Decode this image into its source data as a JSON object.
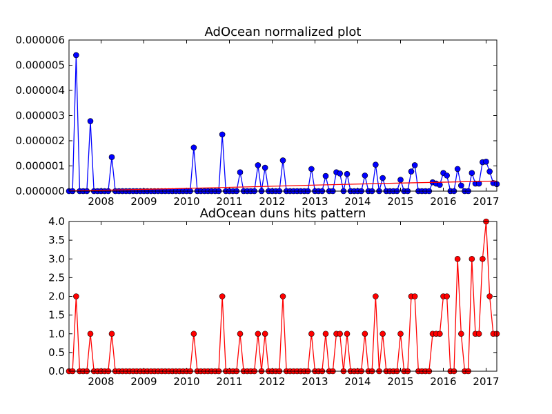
{
  "chart_data": [
    {
      "type": "line",
      "title": "AdOcean normalized plot",
      "x": [
        2007.25,
        2007.333,
        2007.417,
        2007.5,
        2007.583,
        2007.667,
        2007.75,
        2007.833,
        2007.917,
        2008.0,
        2008.083,
        2008.167,
        2008.25,
        2008.333,
        2008.417,
        2008.5,
        2008.583,
        2008.667,
        2008.75,
        2008.833,
        2008.917,
        2009.0,
        2009.083,
        2009.167,
        2009.25,
        2009.333,
        2009.417,
        2009.5,
        2009.583,
        2009.667,
        2009.75,
        2009.833,
        2009.917,
        2010.0,
        2010.083,
        2010.167,
        2010.25,
        2010.333,
        2010.417,
        2010.5,
        2010.583,
        2010.667,
        2010.75,
        2010.833,
        2010.917,
        2011.0,
        2011.083,
        2011.167,
        2011.25,
        2011.333,
        2011.417,
        2011.5,
        2011.583,
        2011.667,
        2011.75,
        2011.833,
        2011.917,
        2012.0,
        2012.083,
        2012.167,
        2012.25,
        2012.333,
        2012.417,
        2012.5,
        2012.583,
        2012.667,
        2012.75,
        2012.833,
        2012.917,
        2013.0,
        2013.083,
        2013.167,
        2013.25,
        2013.333,
        2013.417,
        2013.5,
        2013.583,
        2013.667,
        2013.75,
        2013.833,
        2013.917,
        2014.0,
        2014.083,
        2014.167,
        2014.25,
        2014.333,
        2014.417,
        2014.5,
        2014.583,
        2014.667,
        2014.75,
        2014.833,
        2014.917,
        2015.0,
        2015.083,
        2015.167,
        2015.25,
        2015.333,
        2015.417,
        2015.5,
        2015.583,
        2015.667,
        2015.75,
        2015.833,
        2015.917,
        2016.0,
        2016.083,
        2016.167,
        2016.25,
        2016.333,
        2016.417,
        2016.5,
        2016.583,
        2016.667,
        2016.75,
        2016.833,
        2016.917,
        2017.0,
        2017.083,
        2017.167,
        2017.25
      ],
      "series": [
        {
          "color": "#0000ff",
          "markers": true,
          "values": [
            0,
            0,
            5.4e-06,
            0,
            0,
            0,
            2.78e-06,
            0,
            0,
            0,
            0,
            0,
            1.35e-06,
            0,
            0,
            0,
            0,
            0,
            0,
            0,
            0,
            0,
            0,
            0,
            0,
            0,
            0,
            0,
            0,
            0,
            0,
            0,
            0,
            0,
            0,
            1.73e-06,
            0,
            0,
            0,
            0,
            0,
            0,
            0,
            2.25e-06,
            0,
            0,
            0,
            0,
            7.5e-07,
            0,
            0,
            0,
            0,
            1.03e-06,
            0,
            9.3e-07,
            0,
            0,
            0,
            0,
            1.22e-06,
            0,
            0,
            0,
            0,
            0,
            0,
            0,
            8.8e-07,
            0,
            0,
            0,
            6e-07,
            0,
            0,
            7.5e-07,
            7e-07,
            0,
            6.8e-07,
            0,
            0,
            0,
            0,
            6.2e-07,
            0,
            0,
            1.05e-06,
            0,
            5.2e-07,
            0,
            0,
            0,
            0,
            4.5e-07,
            0,
            0,
            7.8e-07,
            1.03e-06,
            0,
            0,
            0,
            0,
            3.5e-07,
            3e-07,
            2.5e-07,
            7.2e-07,
            6.2e-07,
            0,
            0,
            8.8e-07,
            2.2e-07,
            0,
            0,
            7.2e-07,
            3e-07,
            3e-07,
            1.15e-06,
            1.17e-06,
            7.8e-07,
            3.2e-07,
            2.8e-07
          ]
        },
        {
          "color": "#ff0000",
          "markers": false,
          "x": [
            2007.25,
            2009,
            2011,
            2013,
            2015,
            2017.25
          ],
          "values": [
            1e-08,
            7e-08,
            1.5e-07,
            2.4e-07,
            3.2e-07,
            4e-07
          ]
        }
      ],
      "xlim": [
        2007.25,
        2017.25
      ],
      "xticks": [
        2008,
        2009,
        2010,
        2011,
        2012,
        2013,
        2014,
        2015,
        2016,
        2017
      ],
      "ylim": [
        0,
        6e-06
      ],
      "yticks": [
        {
          "value": 0,
          "label": "0.000000"
        },
        {
          "value": 1e-06,
          "label": "0.000001"
        },
        {
          "value": 2e-06,
          "label": "0.000002"
        },
        {
          "value": 3e-06,
          "label": "0.000003"
        },
        {
          "value": 4e-06,
          "label": "0.000004"
        },
        {
          "value": 5e-06,
          "label": "0.000005"
        },
        {
          "value": 6e-06,
          "label": "0.000006"
        }
      ]
    },
    {
      "type": "line",
      "title": "AdOcean duns hits pattern",
      "x": [
        2007.25,
        2007.333,
        2007.417,
        2007.5,
        2007.583,
        2007.667,
        2007.75,
        2007.833,
        2007.917,
        2008.0,
        2008.083,
        2008.167,
        2008.25,
        2008.333,
        2008.417,
        2008.5,
        2008.583,
        2008.667,
        2008.75,
        2008.833,
        2008.917,
        2009.0,
        2009.083,
        2009.167,
        2009.25,
        2009.333,
        2009.417,
        2009.5,
        2009.583,
        2009.667,
        2009.75,
        2009.833,
        2009.917,
        2010.0,
        2010.083,
        2010.167,
        2010.25,
        2010.333,
        2010.417,
        2010.5,
        2010.583,
        2010.667,
        2010.75,
        2010.833,
        2010.917,
        2011.0,
        2011.083,
        2011.167,
        2011.25,
        2011.333,
        2011.417,
        2011.5,
        2011.583,
        2011.667,
        2011.75,
        2011.833,
        2011.917,
        2012.0,
        2012.083,
        2012.167,
        2012.25,
        2012.333,
        2012.417,
        2012.5,
        2012.583,
        2012.667,
        2012.75,
        2012.833,
        2012.917,
        2013.0,
        2013.083,
        2013.167,
        2013.25,
        2013.333,
        2013.417,
        2013.5,
        2013.583,
        2013.667,
        2013.75,
        2013.833,
        2013.917,
        2014.0,
        2014.083,
        2014.167,
        2014.25,
        2014.333,
        2014.417,
        2014.5,
        2014.583,
        2014.667,
        2014.75,
        2014.833,
        2014.917,
        2015.0,
        2015.083,
        2015.167,
        2015.25,
        2015.333,
        2015.417,
        2015.5,
        2015.583,
        2015.667,
        2015.75,
        2015.833,
        2015.917,
        2016.0,
        2016.083,
        2016.167,
        2016.25,
        2016.333,
        2016.417,
        2016.5,
        2016.583,
        2016.667,
        2016.75,
        2016.833,
        2016.917,
        2017.0,
        2017.083,
        2017.167,
        2017.25
      ],
      "series": [
        {
          "color": "#ff0000",
          "markers": true,
          "values": [
            0,
            0,
            2,
            0,
            0,
            0,
            1,
            0,
            0,
            0,
            0,
            0,
            1,
            0,
            0,
            0,
            0,
            0,
            0,
            0,
            0,
            0,
            0,
            0,
            0,
            0,
            0,
            0,
            0,
            0,
            0,
            0,
            0,
            0,
            0,
            1,
            0,
            0,
            0,
            0,
            0,
            0,
            0,
            2,
            0,
            0,
            0,
            0,
            1,
            0,
            0,
            0,
            0,
            1,
            0,
            1,
            0,
            0,
            0,
            0,
            2,
            0,
            0,
            0,
            0,
            0,
            0,
            0,
            1,
            0,
            0,
            0,
            1,
            0,
            0,
            1,
            1,
            0,
            1,
            0,
            0,
            0,
            0,
            1,
            0,
            0,
            2,
            0,
            1,
            0,
            0,
            0,
            0,
            1,
            0,
            0,
            2,
            2,
            0,
            0,
            0,
            0,
            1,
            1,
            1,
            2,
            2,
            0,
            0,
            3,
            1,
            0,
            0,
            3,
            1,
            1,
            3,
            4,
            2,
            1,
            1
          ]
        }
      ],
      "xlim": [
        2007.25,
        2017.25
      ],
      "xticks": [
        2008,
        2009,
        2010,
        2011,
        2012,
        2013,
        2014,
        2015,
        2016,
        2017
      ],
      "ylim": [
        0,
        4
      ],
      "yticks": [
        {
          "value": 0,
          "label": "0.0"
        },
        0.5,
        {
          "value": 1,
          "label": "1.0"
        },
        1.5,
        {
          "value": 2,
          "label": "2.0"
        },
        2.5,
        {
          "value": 3,
          "label": "3.0"
        },
        3.5,
        {
          "value": 4,
          "label": "4.0"
        }
      ]
    }
  ]
}
